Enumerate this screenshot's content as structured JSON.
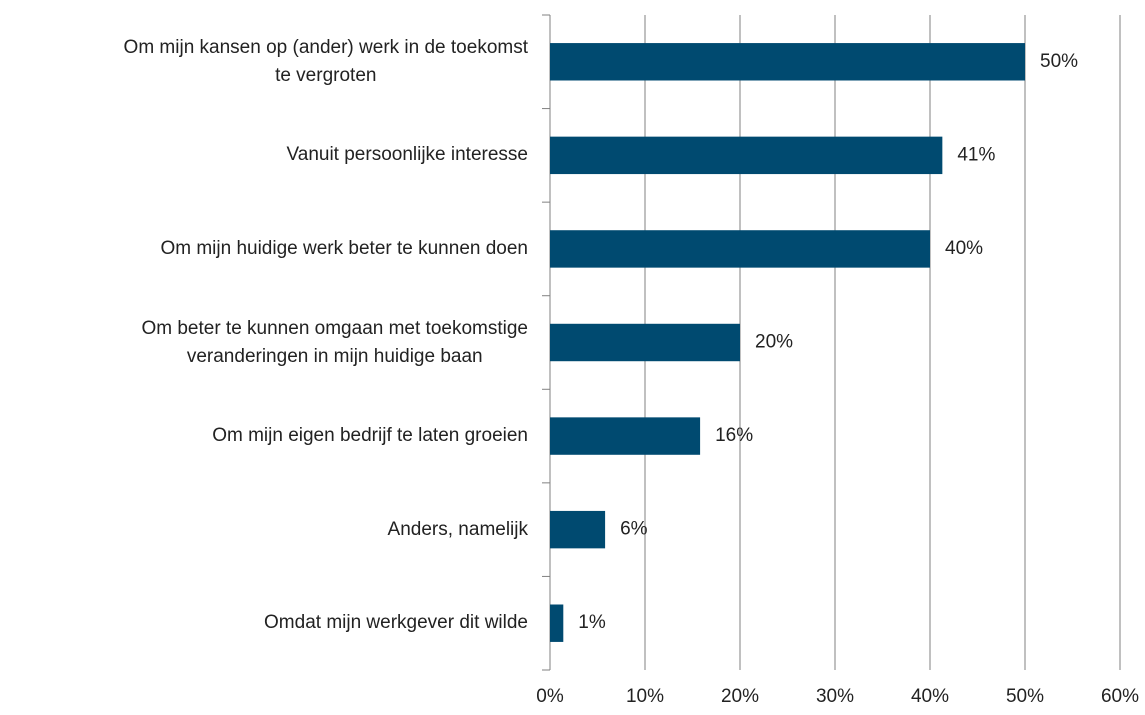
{
  "chart_data": {
    "type": "bar",
    "orientation": "horizontal",
    "categories": [
      "Om mijn kansen op (ander) werk in de toekomst\nte vergroten",
      "Vanuit persoonlijke interesse",
      "Om mijn huidige werk beter te kunnen doen",
      "Om beter te kunnen omgaan met toekomstige\nveranderingen in mijn huidige baan",
      "Om mijn eigen bedrijf te laten groeien",
      "Anders, namelijk",
      "Omdat mijn werkgever dit wilde"
    ],
    "values": [
      50,
      41.3,
      40,
      20,
      15.8,
      5.8,
      1.4
    ],
    "value_labels": [
      "50%",
      "41%",
      "40%",
      "20%",
      "16%",
      "6%",
      "1%"
    ],
    "color": "#004a70",
    "xlim": [
      0,
      60
    ],
    "xticks": [
      {
        "value": 0,
        "label": "0%"
      },
      {
        "value": 10,
        "label": "10%"
      },
      {
        "value": 20,
        "label": "20%"
      },
      {
        "value": 30,
        "label": "30%"
      },
      {
        "value": 40,
        "label": "40%"
      },
      {
        "value": 50,
        "label": "50%"
      },
      {
        "value": 60,
        "label": "60%"
      }
    ],
    "grid": true
  }
}
